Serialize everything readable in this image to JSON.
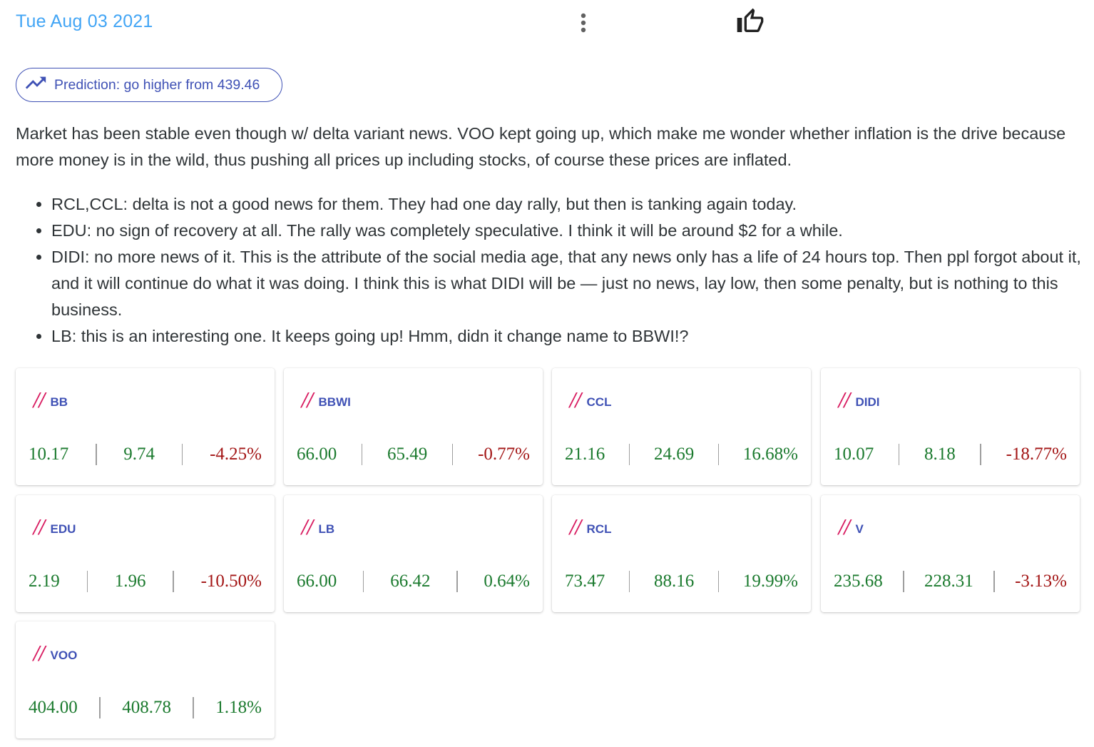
{
  "header": {
    "date": "Tue Aug 03 2021",
    "more_icon": "more-vert-icon",
    "like_icon": "thumb-up-outline-icon"
  },
  "prediction": {
    "label": "Prediction: go higher from 439.46",
    "icon": "trending-up-icon"
  },
  "body": {
    "paragraph": "Market has been stable even though w/ delta variant news. VOO kept going up, which make me wonder whether inflation is the drive because more money is in the wild, thus pushing all prices up including stocks, of course these prices are inflated.",
    "notes": [
      "RCL,CCL: delta is not a good news for them. They had one day rally, but then is tanking again today.",
      "EDU: no sign of recovery at all. The rally was completely speculative. I think it will be around $2 for a while.",
      "DIDI: no more news of it. This is the attribute of the social media age, that any news only has a life of 24 hours top. Then ppl forgot about it, and it will continue do what it was doing. I think this is what DIDI will be — just no news, lay low, then some penalty, but is nothing to this business.",
      "LB: this is an interesting one. It keeps going up! Hmm, didn it change name to BBWI!?"
    ]
  },
  "cards": [
    {
      "slashes": "//",
      "symbol": "BB",
      "start": "10.17",
      "end": "9.74",
      "change": "-4.25%"
    },
    {
      "slashes": "//",
      "symbol": "BBWI",
      "start": "66.00",
      "end": "65.49",
      "change": "-0.77%"
    },
    {
      "slashes": "//",
      "symbol": "CCL",
      "start": "21.16",
      "end": "24.69",
      "change": "16.68%"
    },
    {
      "slashes": "//",
      "symbol": "DIDI",
      "start": "10.07",
      "end": "8.18",
      "change": "-18.77%"
    },
    {
      "slashes": "//",
      "symbol": "EDU",
      "start": "2.19",
      "end": "1.96",
      "change": "-10.50%"
    },
    {
      "slashes": "//",
      "symbol": "LB",
      "start": "66.00",
      "end": "66.42",
      "change": "0.64%"
    },
    {
      "slashes": "//",
      "symbol": "RCL",
      "start": "73.47",
      "end": "88.16",
      "change": "19.99%"
    },
    {
      "slashes": "//",
      "symbol": "V",
      "start": "235.68",
      "end": "228.31",
      "change": "-3.13%"
    },
    {
      "slashes": "//",
      "symbol": "VOO",
      "start": "404.00",
      "end": "408.78",
      "change": "1.18%"
    }
  ],
  "colors": {
    "date": "#42a5f5",
    "accent": "#3f51b5",
    "slashes": "#d81b60",
    "positive": "#1b7a2e",
    "negative": "#a31515"
  }
}
